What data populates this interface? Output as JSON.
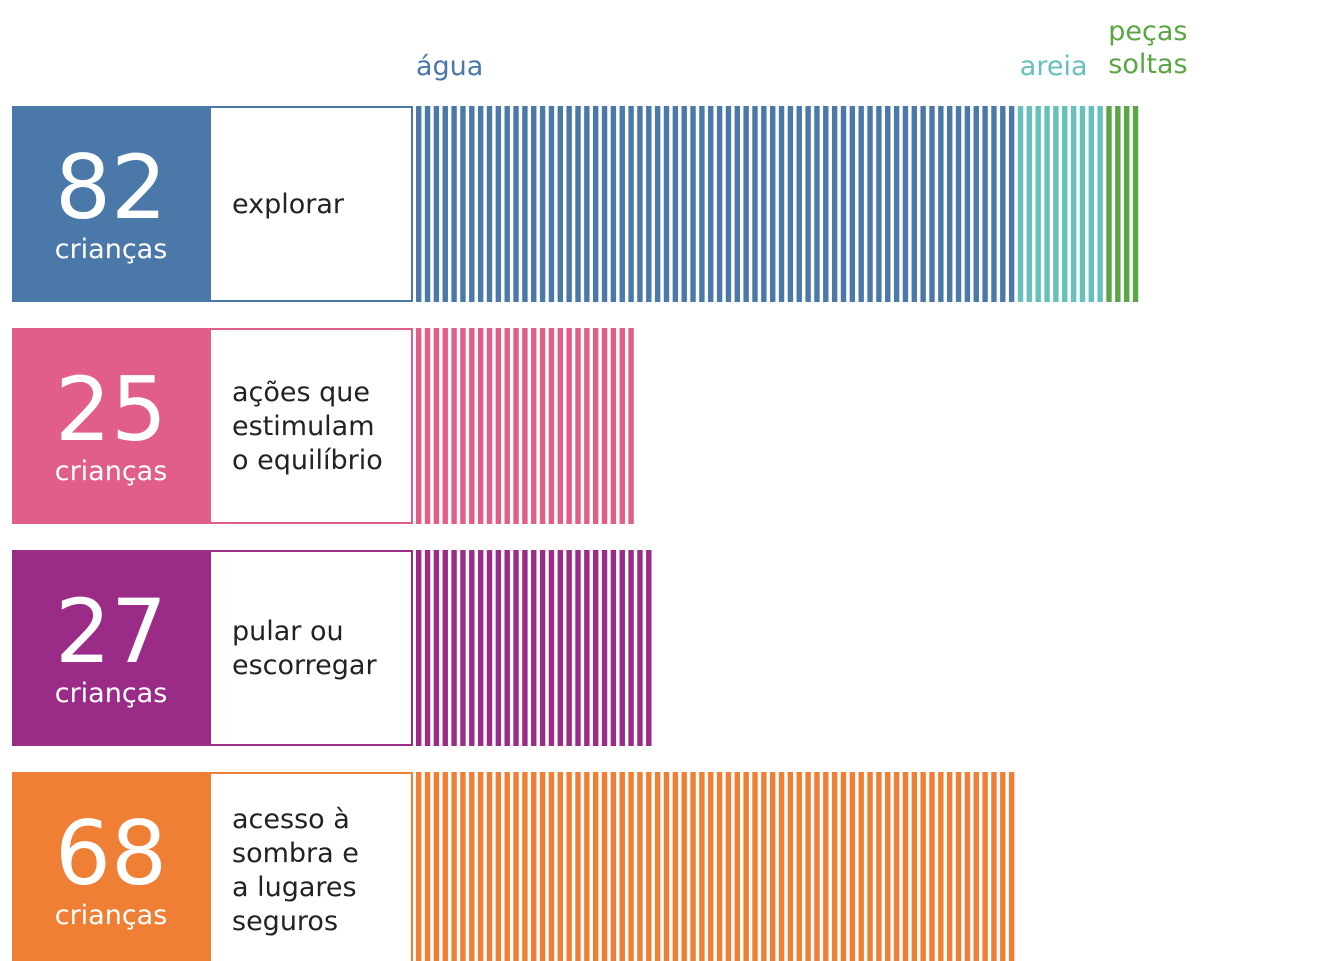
{
  "chart_data": {
    "type": "bar",
    "unit_label": "crianças",
    "stack_segments": [
      {
        "name": "água",
        "color": "#4a78a8"
      },
      {
        "name": "areia",
        "color": "#66c1bc"
      },
      {
        "name": "peças soltas",
        "color": "#5aa544"
      }
    ],
    "rows": [
      {
        "value": 82,
        "label": "explorar",
        "label_lines": [
          "explorar"
        ],
        "color": "#4a78a8",
        "segments": [
          {
            "name": "água",
            "count": 68
          },
          {
            "name": "areia",
            "count": 10
          },
          {
            "name": "peças soltas",
            "count": 4
          }
        ]
      },
      {
        "value": 25,
        "label": "ações que estimulam o equilíbrio",
        "label_lines": [
          "ações que",
          "estimulam",
          "o equilíbrio"
        ],
        "color": "#e05e87",
        "segments": [
          {
            "name": "",
            "count": 25
          }
        ]
      },
      {
        "value": 27,
        "label": "pular ou escorregar",
        "label_lines": [
          "pular ou",
          "escorregar"
        ],
        "color": "#9a2b86",
        "segments": [
          {
            "name": "",
            "count": 27
          }
        ]
      },
      {
        "value": 68,
        "label": "acesso à sombra e a lugares seguros",
        "label_lines": [
          "acesso à",
          "sombra e",
          "a lugares",
          "seguros"
        ],
        "color": "#ef7f35",
        "segments": [
          {
            "name": "",
            "count": 68
          }
        ]
      }
    ]
  }
}
